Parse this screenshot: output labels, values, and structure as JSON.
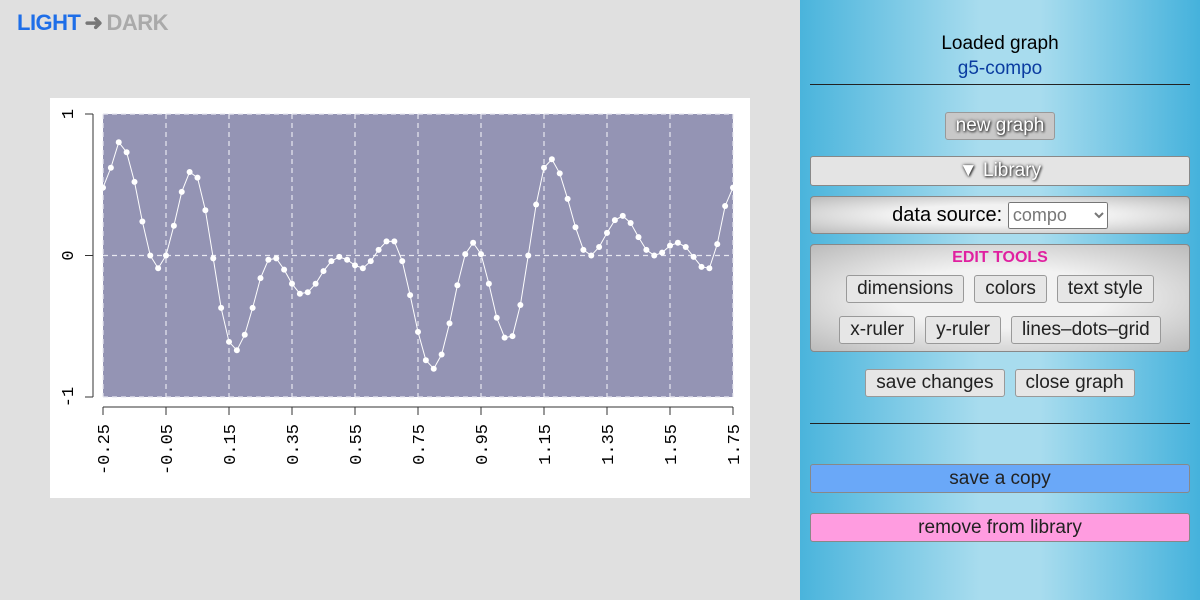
{
  "header": {
    "light": "LIGHT",
    "dark": "DARK"
  },
  "chart_data": {
    "type": "line",
    "x": [
      -0.25,
      -0.225,
      -0.2,
      -0.175,
      -0.15,
      -0.125,
      -0.1,
      -0.075,
      -0.05,
      -0.025,
      0,
      0.025,
      0.05,
      0.075,
      0.1,
      0.125,
      0.15,
      0.175,
      0.2,
      0.225,
      0.25,
      0.275,
      0.3,
      0.325,
      0.35,
      0.375,
      0.4,
      0.425,
      0.45,
      0.475,
      0.5,
      0.525,
      0.55,
      0.575,
      0.6,
      0.625,
      0.65,
      0.675,
      0.7,
      0.725,
      0.75,
      0.775,
      0.8,
      0.825,
      0.85,
      0.875,
      0.9,
      0.925,
      0.95,
      0.975,
      1.0,
      1.025,
      1.05,
      1.075,
      1.1,
      1.125,
      1.15,
      1.175,
      1.2,
      1.225,
      1.25,
      1.275,
      1.3,
      1.325,
      1.35,
      1.375,
      1.4,
      1.425,
      1.45,
      1.475,
      1.5,
      1.525,
      1.55,
      1.575,
      1.6,
      1.625,
      1.65,
      1.675,
      1.7,
      1.725,
      1.75
    ],
    "series": [
      {
        "color": "#ffffff",
        "values": [
          0.48,
          0.62,
          0.8,
          0.73,
          0.52,
          0.24,
          0.0,
          -0.09,
          0.0,
          0.21,
          0.45,
          0.59,
          0.55,
          0.32,
          -0.02,
          -0.37,
          -0.61,
          -0.67,
          -0.56,
          -0.37,
          -0.16,
          -0.03,
          -0.02,
          -0.1,
          -0.2,
          -0.27,
          -0.26,
          -0.2,
          -0.11,
          -0.04,
          -0.01,
          -0.03,
          -0.07,
          -0.09,
          -0.04,
          0.04,
          0.1,
          0.1,
          -0.04,
          -0.28,
          -0.54,
          -0.74,
          -0.8,
          -0.7,
          -0.48,
          -0.21,
          0.01,
          0.09,
          0.01,
          -0.2,
          -0.44,
          -0.58,
          -0.57,
          -0.35,
          0.0,
          0.36,
          0.62,
          0.68,
          0.58,
          0.4,
          0.2,
          0.04,
          0.0,
          0.06,
          0.16,
          0.25,
          0.28,
          0.23,
          0.13,
          0.04,
          0.0,
          0.02,
          0.07,
          0.09,
          0.06,
          -0.01,
          -0.08,
          -0.09,
          0.08,
          0.35,
          0.48
        ]
      }
    ],
    "xlim": [
      -0.25,
      1.75
    ],
    "ylim": [
      -1,
      1
    ],
    "xticks": [
      -0.25,
      -0.05,
      0.15,
      0.35,
      0.55,
      0.75,
      0.95,
      1.15,
      1.35,
      1.55,
      1.75
    ],
    "yticks": [
      -1,
      0,
      1
    ],
    "grid": true,
    "background": "#9494b4"
  },
  "panel": {
    "loaded_label": "Loaded graph",
    "graph_name": "g5-compo",
    "new_graph": "new graph",
    "library": "Library",
    "data_source_label": "data source:",
    "data_source_value": "compo",
    "edit_tools": {
      "title": "EDIT TOOLS",
      "buttons": [
        "dimensions",
        "colors",
        "text style",
        "x-ruler",
        "y-ruler",
        "lines–dots–grid"
      ]
    },
    "save_changes": "save changes",
    "close_graph": "close graph",
    "save_copy": "save a copy",
    "remove": "remove from library"
  }
}
